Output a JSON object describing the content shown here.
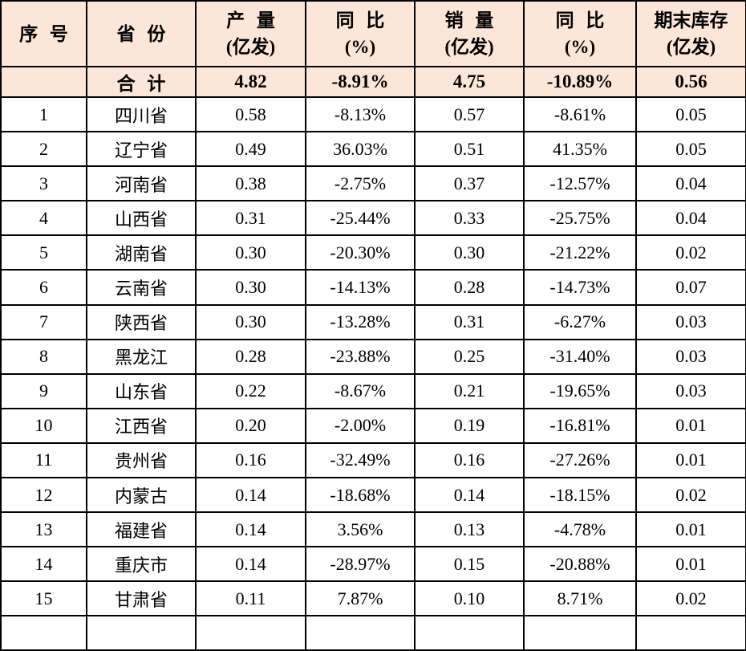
{
  "chart_data": {
    "type": "table",
    "title": "",
    "header": [
      {
        "line1": "序 号",
        "line2": ""
      },
      {
        "line1": "省 份",
        "line2": ""
      },
      {
        "line1": "产 量",
        "line2": "(亿发)"
      },
      {
        "line1": "同 比",
        "line2": "(%)"
      },
      {
        "line1": "销 量",
        "line2": "(亿发)"
      },
      {
        "line1": "同 比",
        "line2": "(%)"
      },
      {
        "line1": "期末库存",
        "line2": "(亿发)"
      }
    ],
    "total_row": [
      "",
      "合 计",
      "4.82",
      "-8.91%",
      "4.75",
      "-10.89%",
      "0.56"
    ],
    "rows": [
      [
        "1",
        "四川省",
        "0.58",
        "-8.13%",
        "0.57",
        "-8.61%",
        "0.05"
      ],
      [
        "2",
        "辽宁省",
        "0.49",
        "36.03%",
        "0.51",
        "41.35%",
        "0.05"
      ],
      [
        "3",
        "河南省",
        "0.38",
        "-2.75%",
        "0.37",
        "-12.57%",
        "0.04"
      ],
      [
        "4",
        "山西省",
        "0.31",
        "-25.44%",
        "0.33",
        "-25.75%",
        "0.04"
      ],
      [
        "5",
        "湖南省",
        "0.30",
        "-20.30%",
        "0.30",
        "-21.22%",
        "0.02"
      ],
      [
        "6",
        "云南省",
        "0.30",
        "-14.13%",
        "0.28",
        "-14.73%",
        "0.07"
      ],
      [
        "7",
        "陕西省",
        "0.30",
        "-13.28%",
        "0.31",
        "-6.27%",
        "0.03"
      ],
      [
        "8",
        "黑龙江",
        "0.28",
        "-23.88%",
        "0.25",
        "-31.40%",
        "0.03"
      ],
      [
        "9",
        "山东省",
        "0.22",
        "-8.67%",
        "0.21",
        "-19.65%",
        "0.03"
      ],
      [
        "10",
        "江西省",
        "0.20",
        "-2.00%",
        "0.19",
        "-16.81%",
        "0.01"
      ],
      [
        "11",
        "贵州省",
        "0.16",
        "-32.49%",
        "0.16",
        "-27.26%",
        "0.01"
      ],
      [
        "12",
        "内蒙古",
        "0.14",
        "-18.68%",
        "0.14",
        "-18.15%",
        "0.02"
      ],
      [
        "13",
        "福建省",
        "0.14",
        "3.56%",
        "0.13",
        "-4.78%",
        "0.01"
      ],
      [
        "14",
        "重庆市",
        "0.14",
        "-28.97%",
        "0.15",
        "-20.88%",
        "0.01"
      ],
      [
        "15",
        "甘肃省",
        "0.11",
        "7.87%",
        "0.10",
        "8.71%",
        "0.02"
      ]
    ],
    "layout": {
      "grid": "on",
      "header_background": "#fce6d8",
      "total_row_background": "#fce6d8",
      "border_color": "#000000",
      "text_color": "#000000"
    }
  }
}
